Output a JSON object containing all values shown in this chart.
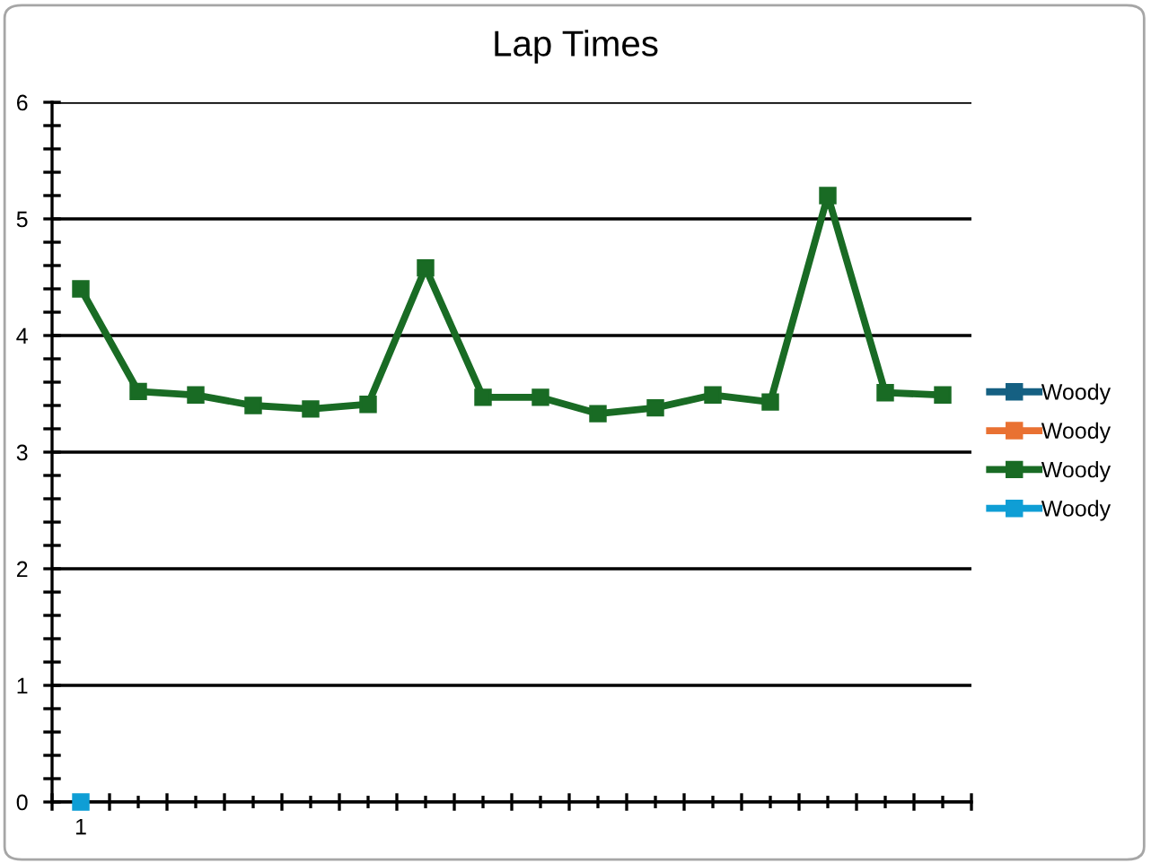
{
  "chart_data": {
    "type": "line",
    "title": "Lap Times",
    "categories": [
      "1",
      null,
      null,
      null,
      null,
      null,
      null,
      null,
      null,
      null,
      null,
      null,
      null,
      null,
      null,
      null
    ],
    "series": [
      {
        "name": "Woody",
        "color": "#156082",
        "values": [
          null,
          null,
          null,
          null,
          null,
          null,
          null,
          null,
          null,
          null,
          null,
          null,
          null,
          null,
          null,
          null
        ]
      },
      {
        "name": "Woody",
        "color": "#e97132",
        "values": [
          null,
          null,
          null,
          null,
          null,
          null,
          null,
          null,
          null,
          null,
          null,
          null,
          null,
          null,
          null,
          null
        ]
      },
      {
        "name": "Woody",
        "color": "#196b24",
        "values": [
          4.4,
          3.52,
          3.49,
          3.4,
          3.37,
          3.41,
          4.58,
          3.47,
          3.47,
          3.33,
          3.38,
          3.49,
          3.43,
          5.2,
          3.51,
          3.49
        ]
      },
      {
        "name": "Woody",
        "color": "#0f9ed5",
        "values": [
          0,
          null,
          null,
          null,
          null,
          null,
          null,
          null,
          null,
          null,
          null,
          null,
          null,
          null,
          null,
          null
        ]
      }
    ],
    "ylim": [
      0,
      6
    ],
    "yticks": [
      0,
      1,
      2,
      3,
      4,
      5,
      6
    ],
    "grid": "y",
    "legend": "right",
    "marker": "square",
    "line_style": "solid"
  }
}
